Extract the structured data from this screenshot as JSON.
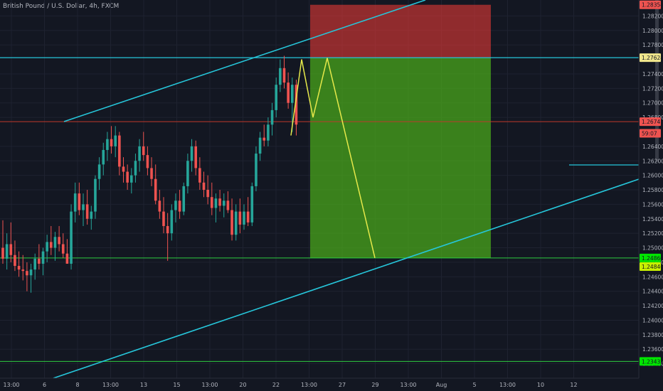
{
  "title": "British Pound / U.S. Dollar, 4h, FXCM",
  "chart_data": {
    "type": "candlestick",
    "title": "British Pound / U.S. Dollar, 4h, FXCM",
    "ylim": [
      1.232,
      1.2842
    ],
    "yticks": [
      "1.28200",
      "1.28000",
      "1.27800",
      "1.27400",
      "1.27200",
      "1.27000",
      "1.26800",
      "1.26400",
      "1.26200",
      "1.26000",
      "1.25800",
      "1.25600",
      "1.25400",
      "1.25200",
      "1.25000",
      "1.24800",
      "1.24600",
      "1.24400",
      "1.24200",
      "1.24000",
      "1.23800",
      "1.23600",
      "1.23400"
    ],
    "xticks": [
      "13:00",
      "6",
      "8",
      "13:00",
      "13",
      "15",
      "13:00",
      "20",
      "22",
      "13:00",
      "27",
      "29",
      "13:00",
      "Aug",
      "5",
      "13:00",
      "10",
      "12"
    ],
    "price_tags": [
      {
        "label": "1.28354",
        "value": 1.28354,
        "color": "#ef5350"
      },
      {
        "label": "1.27624",
        "value": 1.27624,
        "color": "#f0e68c"
      },
      {
        "label": "1.26741",
        "value": 1.26741,
        "color": "#ef5350"
      },
      {
        "label": "59:07",
        "value": 1.2658,
        "color": "#ef5350"
      },
      {
        "label": "1.24860",
        "value": 1.2486,
        "color": "#00e600"
      },
      {
        "label": "1.24840",
        "value": 1.2474,
        "color": "#c8f000"
      },
      {
        "label": "1.23432",
        "value": 1.23432,
        "color": "#00e600"
      }
    ],
    "candles": [
      {
        "o": 1.25,
        "h": 1.2538,
        "l": 1.2478,
        "c": 1.2485
      },
      {
        "o": 1.2485,
        "h": 1.252,
        "l": 1.247,
        "c": 1.2505
      },
      {
        "o": 1.2505,
        "h": 1.2535,
        "l": 1.248,
        "c": 1.249
      },
      {
        "o": 1.249,
        "h": 1.251,
        "l": 1.2468,
        "c": 1.2475
      },
      {
        "o": 1.2475,
        "h": 1.2495,
        "l": 1.246,
        "c": 1.247
      },
      {
        "o": 1.247,
        "h": 1.249,
        "l": 1.2455,
        "c": 1.2468
      },
      {
        "o": 1.2468,
        "h": 1.248,
        "l": 1.244,
        "c": 1.2462
      },
      {
        "o": 1.2462,
        "h": 1.2478,
        "l": 1.2438,
        "c": 1.247
      },
      {
        "o": 1.247,
        "h": 1.2492,
        "l": 1.2456,
        "c": 1.2485
      },
      {
        "o": 1.2485,
        "h": 1.2505,
        "l": 1.247,
        "c": 1.2478
      },
      {
        "o": 1.2478,
        "h": 1.25,
        "l": 1.2462,
        "c": 1.2495
      },
      {
        "o": 1.2495,
        "h": 1.2518,
        "l": 1.248,
        "c": 1.2508
      },
      {
        "o": 1.2508,
        "h": 1.253,
        "l": 1.249,
        "c": 1.25
      },
      {
        "o": 1.25,
        "h": 1.2522,
        "l": 1.2482,
        "c": 1.2515
      },
      {
        "o": 1.2515,
        "h": 1.253,
        "l": 1.2495,
        "c": 1.2505
      },
      {
        "o": 1.2505,
        "h": 1.252,
        "l": 1.2486,
        "c": 1.2492
      },
      {
        "o": 1.2492,
        "h": 1.2512,
        "l": 1.2478,
        "c": 1.2478
      },
      {
        "o": 1.2478,
        "h": 1.256,
        "l": 1.247,
        "c": 1.255
      },
      {
        "o": 1.255,
        "h": 1.259,
        "l": 1.2535,
        "c": 1.2575
      },
      {
        "o": 1.2575,
        "h": 1.259,
        "l": 1.2545,
        "c": 1.2552
      },
      {
        "o": 1.2552,
        "h": 1.2575,
        "l": 1.253,
        "c": 1.256
      },
      {
        "o": 1.256,
        "h": 1.258,
        "l": 1.2532,
        "c": 1.254
      },
      {
        "o": 1.254,
        "h": 1.2558,
        "l": 1.2525,
        "c": 1.255
      },
      {
        "o": 1.255,
        "h": 1.26,
        "l": 1.254,
        "c": 1.2595
      },
      {
        "o": 1.2595,
        "h": 1.2625,
        "l": 1.258,
        "c": 1.2615
      },
      {
        "o": 1.2615,
        "h": 1.2645,
        "l": 1.26,
        "c": 1.2635
      },
      {
        "o": 1.2635,
        "h": 1.266,
        "l": 1.262,
        "c": 1.265
      },
      {
        "o": 1.265,
        "h": 1.2668,
        "l": 1.263,
        "c": 1.264
      },
      {
        "o": 1.264,
        "h": 1.2668,
        "l": 1.2625,
        "c": 1.2655
      },
      {
        "o": 1.2655,
        "h": 1.266,
        "l": 1.26,
        "c": 1.2612
      },
      {
        "o": 1.2612,
        "h": 1.2625,
        "l": 1.259,
        "c": 1.2605
      },
      {
        "o": 1.2605,
        "h": 1.2615,
        "l": 1.258,
        "c": 1.259
      },
      {
        "o": 1.259,
        "h": 1.261,
        "l": 1.2575,
        "c": 1.26
      },
      {
        "o": 1.26,
        "h": 1.263,
        "l": 1.259,
        "c": 1.262
      },
      {
        "o": 1.262,
        "h": 1.265,
        "l": 1.2605,
        "c": 1.264
      },
      {
        "o": 1.264,
        "h": 1.266,
        "l": 1.262,
        "c": 1.2628
      },
      {
        "o": 1.2628,
        "h": 1.264,
        "l": 1.26,
        "c": 1.261
      },
      {
        "o": 1.261,
        "h": 1.2625,
        "l": 1.2585,
        "c": 1.2595
      },
      {
        "o": 1.2595,
        "h": 1.2615,
        "l": 1.256,
        "c": 1.2565
      },
      {
        "o": 1.2565,
        "h": 1.258,
        "l": 1.254,
        "c": 1.255
      },
      {
        "o": 1.255,
        "h": 1.257,
        "l": 1.252,
        "c": 1.253
      },
      {
        "o": 1.253,
        "h": 1.2548,
        "l": 1.2482,
        "c": 1.252
      },
      {
        "o": 1.252,
        "h": 1.256,
        "l": 1.251,
        "c": 1.2552
      },
      {
        "o": 1.2552,
        "h": 1.2575,
        "l": 1.2535,
        "c": 1.2565
      },
      {
        "o": 1.2565,
        "h": 1.258,
        "l": 1.254,
        "c": 1.255
      },
      {
        "o": 1.255,
        "h": 1.259,
        "l": 1.2545,
        "c": 1.2585
      },
      {
        "o": 1.2585,
        "h": 1.263,
        "l": 1.2575,
        "c": 1.262
      },
      {
        "o": 1.262,
        "h": 1.265,
        "l": 1.2605,
        "c": 1.264
      },
      {
        "o": 1.264,
        "h": 1.2648,
        "l": 1.26,
        "c": 1.261
      },
      {
        "o": 1.261,
        "h": 1.2625,
        "l": 1.258,
        "c": 1.259
      },
      {
        "o": 1.259,
        "h": 1.2605,
        "l": 1.257,
        "c": 1.258
      },
      {
        "o": 1.258,
        "h": 1.26,
        "l": 1.256,
        "c": 1.257
      },
      {
        "o": 1.257,
        "h": 1.259,
        "l": 1.2545,
        "c": 1.2555
      },
      {
        "o": 1.2555,
        "h": 1.2575,
        "l": 1.2535,
        "c": 1.2568
      },
      {
        "o": 1.2568,
        "h": 1.258,
        "l": 1.255,
        "c": 1.2558
      },
      {
        "o": 1.2558,
        "h": 1.2575,
        "l": 1.2542,
        "c": 1.2565
      },
      {
        "o": 1.2565,
        "h": 1.2578,
        "l": 1.2548,
        "c": 1.2552
      },
      {
        "o": 1.2552,
        "h": 1.2568,
        "l": 1.251,
        "c": 1.2518
      },
      {
        "o": 1.2518,
        "h": 1.256,
        "l": 1.251,
        "c": 1.255
      },
      {
        "o": 1.255,
        "h": 1.2568,
        "l": 1.252,
        "c": 1.2532
      },
      {
        "o": 1.2532,
        "h": 1.256,
        "l": 1.2525,
        "c": 1.255
      },
      {
        "o": 1.255,
        "h": 1.257,
        "l": 1.253,
        "c": 1.2535
      },
      {
        "o": 1.2535,
        "h": 1.259,
        "l": 1.253,
        "c": 1.2585
      },
      {
        "o": 1.2585,
        "h": 1.264,
        "l": 1.2578,
        "c": 1.263
      },
      {
        "o": 1.263,
        "h": 1.266,
        "l": 1.262,
        "c": 1.2652
      },
      {
        "o": 1.2652,
        "h": 1.267,
        "l": 1.264,
        "c": 1.2648
      },
      {
        "o": 1.2648,
        "h": 1.268,
        "l": 1.264,
        "c": 1.267
      },
      {
        "o": 1.267,
        "h": 1.27,
        "l": 1.2655,
        "c": 1.269
      },
      {
        "o": 1.269,
        "h": 1.2735,
        "l": 1.268,
        "c": 1.2725
      },
      {
        "o": 1.2725,
        "h": 1.276,
        "l": 1.2715,
        "c": 1.2748
      },
      {
        "o": 1.2748,
        "h": 1.2765,
        "l": 1.272,
        "c": 1.2728
      },
      {
        "o": 1.2728,
        "h": 1.2742,
        "l": 1.2692,
        "c": 1.27
      },
      {
        "o": 1.27,
        "h": 1.2735,
        "l": 1.266,
        "c": 1.2725
      },
      {
        "o": 1.2725,
        "h": 1.2732,
        "l": 1.2655,
        "c": 1.267
      }
    ],
    "overlays": {
      "short_position": {
        "entry": 1.27624,
        "stop": 1.28354,
        "target": 1.2486
      },
      "horizontal_lines": [
        1.27624,
        1.26741,
        1.2486,
        1.23432
      ],
      "projection": [
        [
          1.2655,
          1.276
        ],
        [
          1.276,
          1.268
        ],
        [
          1.268,
          1.2762
        ],
        [
          1.2762,
          1.2486
        ]
      ]
    }
  }
}
